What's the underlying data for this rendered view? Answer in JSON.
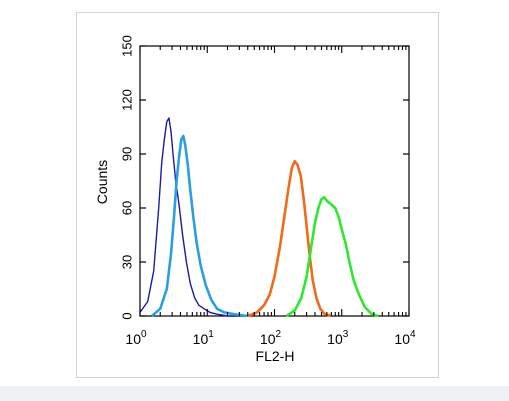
{
  "chart_data": {
    "type": "line",
    "title": "",
    "xlabel": "FL2-H",
    "ylabel": "Counts",
    "xscale": "log",
    "xlim": [
      1,
      10000
    ],
    "ylim": [
      0,
      150
    ],
    "x_ticks": [
      {
        "base": "10",
        "exp": "0"
      },
      {
        "base": "10",
        "exp": "1"
      },
      {
        "base": "10",
        "exp": "2"
      },
      {
        "base": "10",
        "exp": "3"
      },
      {
        "base": "10",
        "exp": "4"
      }
    ],
    "y_ticks": [
      "0",
      "30",
      "60",
      "90",
      "120",
      "150"
    ],
    "grid": false,
    "series": [
      {
        "color": "#1a1aa6",
        "x": [
          1.0,
          1.3,
          1.6,
          1.9,
          2.1,
          2.3,
          2.5,
          2.7,
          2.9,
          3.1,
          3.4,
          3.8,
          4.3,
          4.9,
          5.6,
          6.5,
          7.5,
          9.0,
          11.0,
          14.0,
          20.0,
          40.0
        ],
        "y": [
          2,
          8,
          25,
          60,
          85,
          98,
          108,
          110,
          102,
          90,
          75,
          62,
          45,
          30,
          18,
          10,
          6,
          4,
          2,
          1,
          0,
          0
        ]
      },
      {
        "color": "#2a9fe0",
        "x": [
          1.5,
          2.0,
          2.5,
          2.9,
          3.2,
          3.5,
          3.8,
          4.1,
          4.4,
          4.7,
          5.1,
          5.6,
          6.2,
          7.0,
          8.0,
          9.5,
          11.5,
          14.0,
          18.0,
          25.0,
          40.0
        ],
        "y": [
          0,
          4,
          15,
          35,
          55,
          75,
          88,
          98,
          100,
          95,
          85,
          70,
          55,
          40,
          28,
          17,
          9,
          4,
          2,
          1,
          0
        ]
      },
      {
        "color": "#f06a1a",
        "x": [
          40,
          55,
          70,
          85,
          100,
          120,
          140,
          160,
          180,
          200,
          220,
          245,
          270,
          300,
          330,
          370,
          420,
          480,
          560,
          700
        ],
        "y": [
          0,
          2,
          6,
          12,
          22,
          38,
          55,
          70,
          82,
          86,
          84,
          78,
          66,
          50,
          35,
          20,
          10,
          4,
          1,
          0
        ]
      },
      {
        "color": "#2ee82e",
        "x": [
          150,
          200,
          250,
          300,
          350,
          400,
          450,
          500,
          550,
          600,
          700,
          800,
          900,
          1000,
          1150,
          1300,
          1500,
          1800,
          2200,
          2800,
          3500
        ],
        "y": [
          0,
          3,
          10,
          22,
          38,
          52,
          60,
          65,
          66,
          64,
          62,
          60,
          55,
          48,
          40,
          30,
          20,
          12,
          5,
          1,
          0
        ]
      }
    ]
  }
}
